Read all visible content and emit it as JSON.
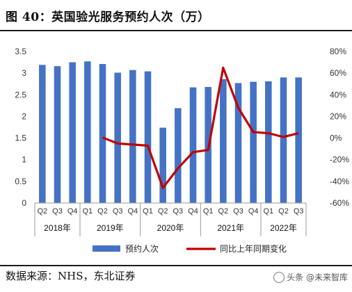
{
  "title": "图 40：英国验光服务预约人次（万）",
  "source": "数据来源：NHS，东北证券",
  "watermark": "头条 @未来智库",
  "chart_data": {
    "type": "bar",
    "categories": [
      "Q2",
      "Q3",
      "Q4",
      "Q1",
      "Q2",
      "Q3",
      "Q4",
      "Q1",
      "Q2",
      "Q3",
      "Q4",
      "Q1",
      "Q2",
      "Q3",
      "Q4",
      "Q1",
      "Q2",
      "Q3"
    ],
    "year_groups": [
      {
        "label": "2018年",
        "span": 3
      },
      {
        "label": "2019年",
        "span": 4
      },
      {
        "label": "2020年",
        "span": 4
      },
      {
        "label": "2021年",
        "span": 4
      },
      {
        "label": "2022年",
        "span": 3
      }
    ],
    "series": [
      {
        "name": "预约人次",
        "kind": "bar",
        "axis": "left",
        "color": "#4472C4",
        "values": [
          3.19,
          3.16,
          3.25,
          3.27,
          3.21,
          3.01,
          3.07,
          3.04,
          1.74,
          2.19,
          2.67,
          2.68,
          2.86,
          2.77,
          2.8,
          2.81,
          2.9,
          2.9
        ]
      },
      {
        "name": "同比上年同期变化",
        "kind": "line",
        "axis": "right",
        "color": "#C00000",
        "values": [
          null,
          null,
          null,
          null,
          0.5,
          -5.0,
          -6.0,
          -7.0,
          -46.0,
          -28.0,
          -13.0,
          -11.0,
          65.0,
          28.0,
          5.5,
          4.5,
          1.0,
          4.5
        ]
      }
    ],
    "ylim_left": [
      0,
      3.5
    ],
    "yticks_left": [
      "0",
      "0.5",
      "1",
      "1.5",
      "2",
      "2.5",
      "3",
      "3.5"
    ],
    "ylim_right": [
      -60,
      80
    ],
    "yticks_right": [
      "-60%",
      "-40%",
      "-20%",
      "0%",
      "20%",
      "40%",
      "60%",
      "80%"
    ],
    "legend_position": "bottom",
    "grid": false
  }
}
